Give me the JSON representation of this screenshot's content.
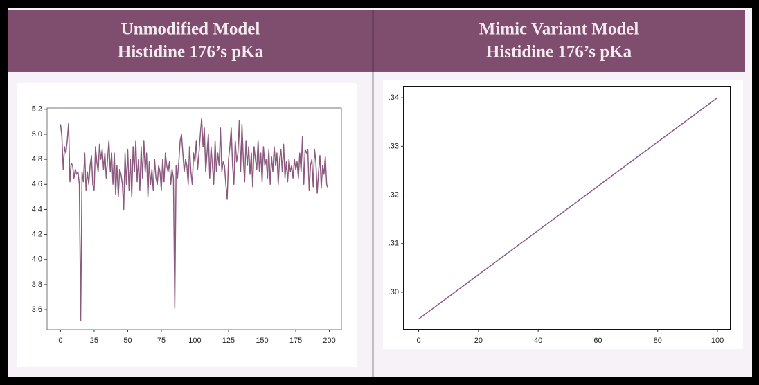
{
  "chart_data": [
    {
      "type": "line",
      "title": "Unmodified Model",
      "subtitle": "Histidine 176’s pKa",
      "color": "#8b5a7e",
      "x": [
        0,
        1,
        2,
        3,
        4,
        5,
        6,
        7,
        8,
        9,
        10,
        11,
        12,
        13,
        14,
        15,
        16,
        17,
        18,
        19,
        20,
        21,
        22,
        23,
        24,
        25,
        26,
        27,
        28,
        29,
        30,
        31,
        32,
        33,
        34,
        35,
        36,
        37,
        38,
        39,
        40,
        41,
        42,
        43,
        44,
        45,
        46,
        47,
        48,
        49,
        50,
        51,
        52,
        53,
        54,
        55,
        56,
        57,
        58,
        59,
        60,
        61,
        62,
        63,
        64,
        65,
        66,
        67,
        68,
        69,
        70,
        71,
        72,
        73,
        74,
        75,
        76,
        77,
        78,
        79,
        80,
        81,
        82,
        83,
        84,
        85,
        86,
        87,
        88,
        89,
        90,
        91,
        92,
        93,
        94,
        95,
        96,
        97,
        98,
        99,
        100,
        101,
        102,
        103,
        104,
        105,
        106,
        107,
        108,
        109,
        110,
        111,
        112,
        113,
        114,
        115,
        116,
        117,
        118,
        119,
        120,
        121,
        122,
        123,
        124,
        125,
        126,
        127,
        128,
        129,
        130,
        131,
        132,
        133,
        134,
        135,
        136,
        137,
        138,
        139,
        140,
        141,
        142,
        143,
        144,
        145,
        146,
        147,
        148,
        149,
        150,
        151,
        152,
        153,
        154,
        155,
        156,
        157,
        158,
        159,
        160,
        161,
        162,
        163,
        164,
        165,
        166,
        167,
        168,
        169,
        170,
        171,
        172,
        173,
        174,
        175,
        176,
        177,
        178,
        179,
        180,
        181,
        182,
        183,
        184,
        185,
        186,
        187,
        188,
        189,
        190,
        191,
        192,
        193,
        194,
        195,
        196,
        197,
        198,
        199
      ],
      "values": [
        5.08,
        4.98,
        4.72,
        4.9,
        4.85,
        4.95,
        5.09,
        4.62,
        4.77,
        4.75,
        4.65,
        4.72,
        4.68,
        4.7,
        4.6,
        3.51,
        4.7,
        4.62,
        4.85,
        4.55,
        4.7,
        4.6,
        4.75,
        4.83,
        4.6,
        4.55,
        4.9,
        4.78,
        4.7,
        4.92,
        4.8,
        4.88,
        4.72,
        4.85,
        4.65,
        4.8,
        4.95,
        4.7,
        4.85,
        4.6,
        4.85,
        4.52,
        4.75,
        4.5,
        4.72,
        4.68,
        4.6,
        4.4,
        4.85,
        4.6,
        4.88,
        4.55,
        4.8,
        4.5,
        4.9,
        4.7,
        4.95,
        4.62,
        4.8,
        4.55,
        4.9,
        4.65,
        4.95,
        4.7,
        4.85,
        4.5,
        4.78,
        4.6,
        4.72,
        4.55,
        4.8,
        4.65,
        4.6,
        4.75,
        4.7,
        4.55,
        4.8,
        4.62,
        4.85,
        4.75,
        4.7,
        4.78,
        4.6,
        4.72,
        4.65,
        3.61,
        4.75,
        4.65,
        4.78,
        4.95,
        5.0,
        4.85,
        4.7,
        4.8,
        4.75,
        4.6,
        4.9,
        4.7,
        4.6,
        4.85,
        4.78,
        4.95,
        4.72,
        4.85,
        5.0,
        5.13,
        4.9,
        5.05,
        4.7,
        4.85,
        5.0,
        4.65,
        4.9,
        4.75,
        4.6,
        4.95,
        4.7,
        4.85,
        4.75,
        5.05,
        4.7,
        4.78,
        4.75,
        4.6,
        4.48,
        4.8,
        4.9,
        5.05,
        4.75,
        4.6,
        4.95,
        4.78,
        4.85,
        5.11,
        4.7,
        5.08,
        4.8,
        4.62,
        4.95,
        4.75,
        4.9,
        4.68,
        4.85,
        4.58,
        4.9,
        4.8,
        4.72,
        4.95,
        4.7,
        4.85,
        4.62,
        4.9,
        4.75,
        4.8,
        4.65,
        4.88,
        4.6,
        4.82,
        4.7,
        4.9,
        4.75,
        4.85,
        4.6,
        4.8,
        4.88,
        4.7,
        4.92,
        4.65,
        4.78,
        4.62,
        4.8,
        4.7,
        4.75,
        4.65,
        4.8,
        4.72,
        4.78,
        4.65,
        4.85,
        4.7,
        4.98,
        4.6,
        4.88,
        4.85,
        4.88,
        4.55,
        4.75,
        4.8,
        4.58,
        4.88,
        4.78,
        4.53,
        4.7,
        4.83,
        4.57,
        4.75,
        4.68,
        4.82,
        4.6,
        4.57
      ],
      "xlim": [
        -10,
        209
      ],
      "ylim": [
        3.44,
        5.21
      ],
      "xticks": [
        0,
        25,
        50,
        75,
        100,
        125,
        150,
        175,
        200
      ],
      "yticks": [
        3.6,
        3.8,
        {
          "value": 4,
          "label": "4.0"
        },
        4.2,
        4.4,
        4.6,
        4.8,
        {
          "value": 5,
          "label": "5.0"
        },
        5.2
      ]
    },
    {
      "type": "line",
      "title": "Mimic Variant Model",
      "subtitle": "Histidine 176’s pKa",
      "color": "#8b5a7e",
      "x": [
        0,
        100
      ],
      "values": [
        0.2945,
        0.34
      ],
      "xlim": [
        -5,
        104.4
      ],
      "ylim": [
        0.2923,
        0.3423
      ],
      "xticks": [
        0,
        20,
        40,
        60,
        80,
        100
      ],
      "yticks": [
        {
          "value": 0.3,
          "label": ".30"
        },
        {
          "value": 0.31,
          "label": ".31"
        },
        {
          "value": 0.32,
          "label": ".32"
        },
        {
          "value": 0.33,
          "label": ".33"
        },
        {
          "value": 0.34,
          "label": ".34"
        }
      ]
    }
  ]
}
